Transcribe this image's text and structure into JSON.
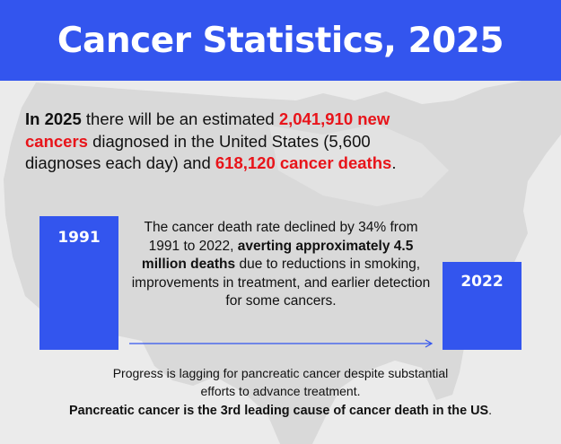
{
  "header": {
    "title": "Cancer Statistics, 2025"
  },
  "intro": {
    "lead_bold": "In 2025",
    "text_1": " there will be an estimated ",
    "new_cancers": "2,041,910 new cancers",
    "text_2": " diagnosed in the United States (5,600 diagnoses each day) and ",
    "deaths": "618,120 cancer deaths",
    "text_3": "."
  },
  "timeline": {
    "start_label": "1991",
    "end_label": "2022",
    "text_1": "The cancer death rate declined by 34% from 1991 to 2022, ",
    "bold": "averting approximately 4.5 million deaths",
    "text_2": " due to reductions in smoking, improvements in treatment, and earlier detection for some cancers."
  },
  "footer": {
    "line_1": "Progress is lagging for pancreatic cancer despite substantial efforts to advance treatment.",
    "line_2": "Pancreatic cancer is the 3rd leading cause of cancer death in the US",
    "line_2_end": "."
  },
  "colors": {
    "brand_blue": "#3355ee",
    "highlight_red": "#e8141a",
    "map_gray": "#d9d9d9",
    "background": "#ebebeb"
  }
}
